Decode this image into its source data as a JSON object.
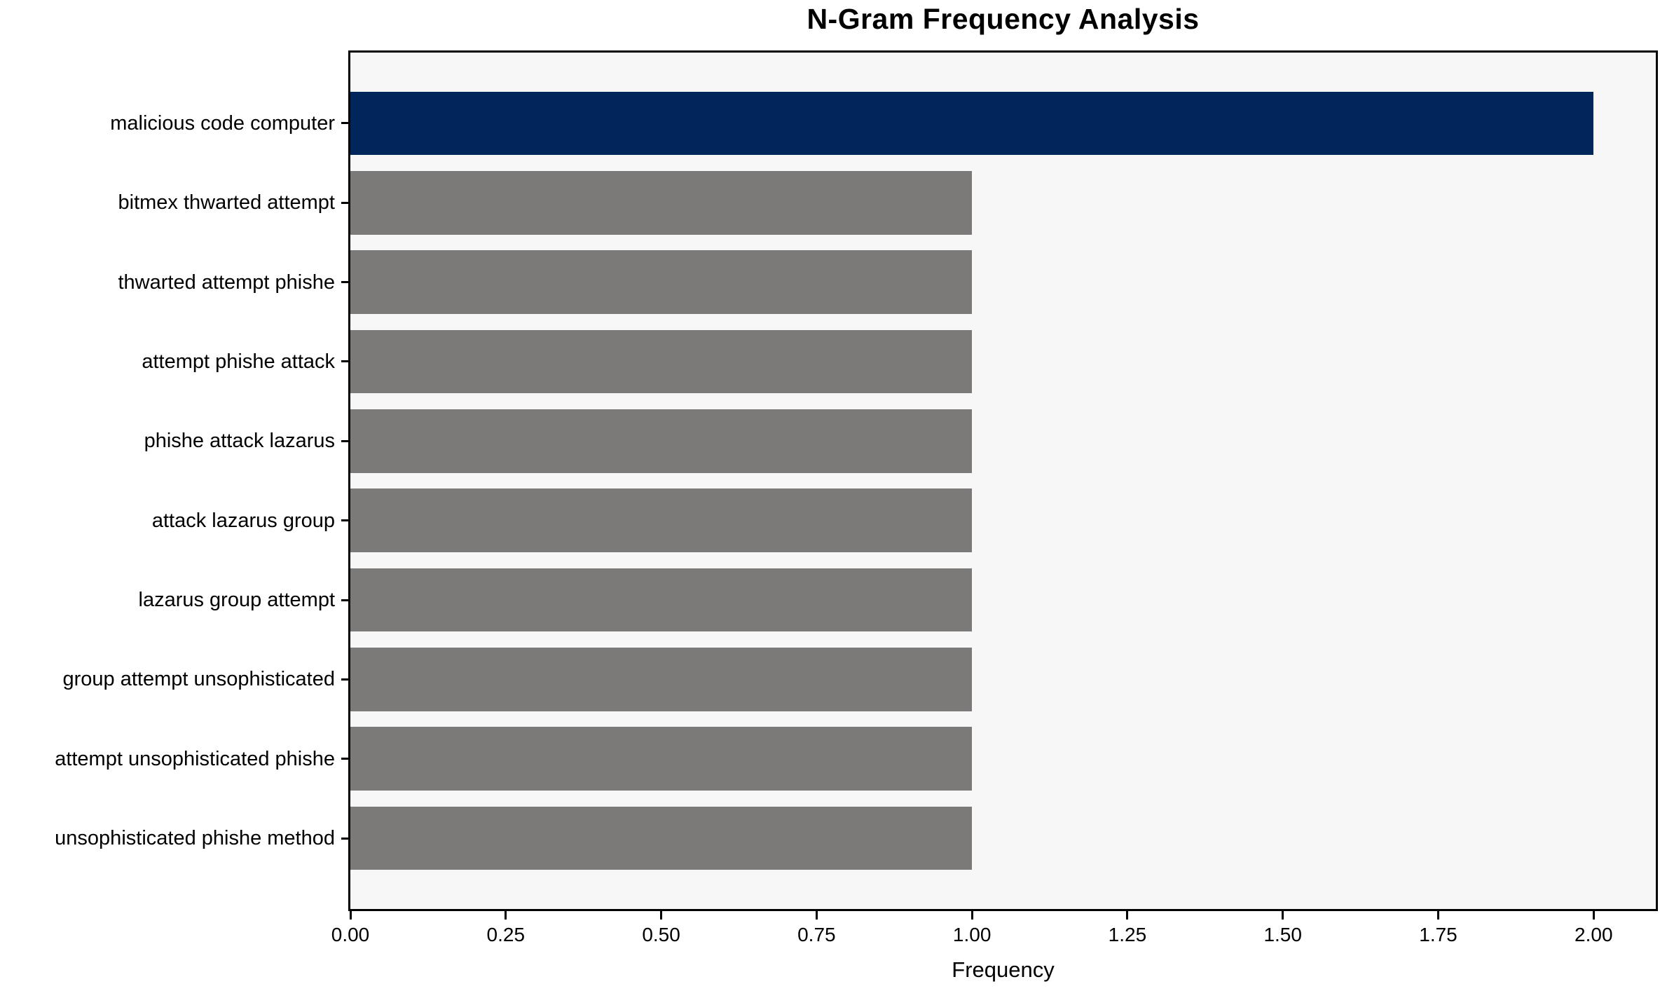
{
  "page": {
    "background": "#ffffff"
  },
  "chart_data": {
    "type": "bar",
    "orientation": "horizontal",
    "title": "N-Gram Frequency Analysis",
    "xlabel": "Frequency",
    "ylabel": "",
    "categories": [
      "malicious code computer",
      "bitmex thwarted attempt",
      "thwarted attempt phishe",
      "attempt phishe attack",
      "phishe attack lazarus",
      "attack lazarus group",
      "lazarus group attempt",
      "group attempt unsophisticated",
      "attempt unsophisticated phishe",
      "unsophisticated phishe method"
    ],
    "values": [
      2.0,
      1.0,
      1.0,
      1.0,
      1.0,
      1.0,
      1.0,
      1.0,
      1.0,
      1.0
    ],
    "bar_colors": [
      "#01265c",
      "#7b7a78",
      "#7b7a78",
      "#7b7a78",
      "#7b7a78",
      "#7b7a78",
      "#7b7a78",
      "#7b7a78",
      "#7b7a78",
      "#7b7a78"
    ],
    "x_ticks": [
      "0.00",
      "0.25",
      "0.50",
      "0.75",
      "1.00",
      "1.25",
      "1.50",
      "1.75",
      "2.00"
    ],
    "x_tick_values": [
      0,
      0.25,
      0.5,
      0.75,
      1.0,
      1.25,
      1.5,
      1.75,
      2.0
    ],
    "xlim": [
      0,
      2.1
    ],
    "ylim": [
      -0.89,
      9.89
    ],
    "bar_height": 0.8,
    "grid": false,
    "legend": null,
    "colors": {
      "highlight_bar": "#01265c",
      "default_bar": "#7b7a78",
      "plot_background": "#f7f7f7",
      "frame": "#000000",
      "text": "#000000",
      "page_background": "#ffffff"
    }
  }
}
